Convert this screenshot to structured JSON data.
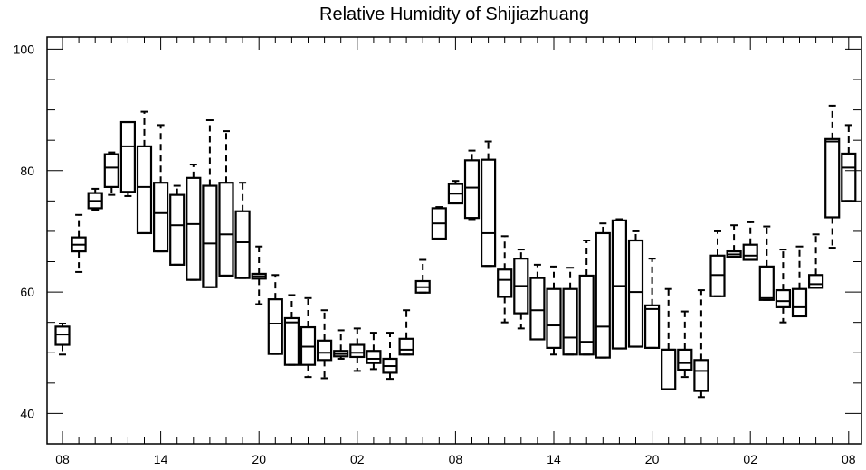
{
  "chart_data": {
    "type": "boxplot",
    "title": "Relative Humidity of Shijiazhuang",
    "xlabel": "",
    "ylabel": "",
    "ylim": [
      35,
      102
    ],
    "y_ticks": [
      40,
      60,
      80,
      100
    ],
    "x_tick_labels": [
      "08",
      "14",
      "20",
      "02",
      "08",
      "14",
      "20",
      "02",
      "08"
    ],
    "x_label_steps": [
      0,
      6,
      12,
      18,
      24,
      30,
      36,
      42,
      48
    ],
    "grid": false,
    "legend": "none",
    "colors": {
      "box": "#000000",
      "background": "#ffffff"
    },
    "boxes": [
      {
        "step": 0,
        "q1": 51.3,
        "median": 53.0,
        "q3": 54.3,
        "wlo": 49.7,
        "whi": 54.8
      },
      {
        "step": 1,
        "q1": 66.7,
        "median": 67.8,
        "q3": 69.0,
        "wlo": 63.3,
        "whi": 72.7
      },
      {
        "step": 2,
        "q1": 73.8,
        "median": 75.0,
        "q3": 76.3,
        "wlo": 73.5,
        "whi": 77.0
      },
      {
        "step": 3,
        "q1": 77.3,
        "median": 80.5,
        "q3": 82.7,
        "wlo": 76.0,
        "whi": 83.0
      },
      {
        "step": 4,
        "q1": 76.5,
        "median": 84.0,
        "q3": 88.0,
        "wlo": 75.8,
        "whi": 88.0
      },
      {
        "step": 5,
        "q1": 69.7,
        "median": 77.3,
        "q3": 84.0,
        "wlo": 69.7,
        "whi": 89.7
      },
      {
        "step": 6,
        "q1": 66.7,
        "median": 73.0,
        "q3": 78.0,
        "wlo": 66.7,
        "whi": 87.5
      },
      {
        "step": 7,
        "q1": 64.5,
        "median": 71.0,
        "q3": 76.0,
        "wlo": 64.5,
        "whi": 77.5
      },
      {
        "step": 8,
        "q1": 62.0,
        "median": 71.2,
        "q3": 78.8,
        "wlo": 62.0,
        "whi": 81.0
      },
      {
        "step": 9,
        "q1": 60.8,
        "median": 68.0,
        "q3": 77.5,
        "wlo": 60.8,
        "whi": 88.3
      },
      {
        "step": 10,
        "q1": 62.7,
        "median": 69.5,
        "q3": 78.0,
        "wlo": 62.7,
        "whi": 86.5
      },
      {
        "step": 11,
        "q1": 62.3,
        "median": 68.2,
        "q3": 73.3,
        "wlo": 62.3,
        "whi": 78.0
      },
      {
        "step": 12,
        "q1": 62.2,
        "median": 62.6,
        "q3": 63.0,
        "wlo": 58.0,
        "whi": 67.5
      },
      {
        "step": 13,
        "q1": 49.8,
        "median": 54.8,
        "q3": 58.8,
        "wlo": 49.8,
        "whi": 62.8
      },
      {
        "step": 14,
        "q1": 48.0,
        "median": 55.0,
        "q3": 55.7,
        "wlo": 48.0,
        "whi": 59.5
      },
      {
        "step": 15,
        "q1": 48.0,
        "median": 51.0,
        "q3": 54.2,
        "wlo": 46.0,
        "whi": 59.0
      },
      {
        "step": 16,
        "q1": 48.8,
        "median": 50.0,
        "q3": 52.0,
        "wlo": 45.8,
        "whi": 57.0
      },
      {
        "step": 17,
        "q1": 49.4,
        "median": 49.8,
        "q3": 50.3,
        "wlo": 49.0,
        "whi": 53.7
      },
      {
        "step": 18,
        "q1": 49.3,
        "median": 50.0,
        "q3": 51.3,
        "wlo": 47.0,
        "whi": 54.0
      },
      {
        "step": 19,
        "q1": 48.3,
        "median": 49.0,
        "q3": 50.3,
        "wlo": 47.3,
        "whi": 53.3
      },
      {
        "step": 20,
        "q1": 46.7,
        "median": 47.8,
        "q3": 49.0,
        "wlo": 45.7,
        "whi": 53.3
      },
      {
        "step": 21,
        "q1": 49.7,
        "median": 50.5,
        "q3": 52.3,
        "wlo": 49.7,
        "whi": 57.0
      },
      {
        "step": 22,
        "q1": 59.9,
        "median": 60.8,
        "q3": 61.8,
        "wlo": 59.9,
        "whi": 65.3
      },
      {
        "step": 23,
        "q1": 68.8,
        "median": 71.3,
        "q3": 73.8,
        "wlo": 68.8,
        "whi": 74.0
      },
      {
        "step": 24,
        "q1": 74.6,
        "median": 76.2,
        "q3": 77.8,
        "wlo": 74.6,
        "whi": 78.3
      },
      {
        "step": 25,
        "q1": 72.2,
        "median": 77.2,
        "q3": 81.7,
        "wlo": 72.0,
        "whi": 83.3
      },
      {
        "step": 26,
        "q1": 64.3,
        "median": 69.7,
        "q3": 81.8,
        "wlo": 64.3,
        "whi": 84.8
      },
      {
        "step": 27,
        "q1": 59.2,
        "median": 62.0,
        "q3": 63.7,
        "wlo": 55.0,
        "whi": 69.2
      },
      {
        "step": 28,
        "q1": 56.5,
        "median": 61.0,
        "q3": 65.5,
        "wlo": 54.0,
        "whi": 67.0
      },
      {
        "step": 29,
        "q1": 52.2,
        "median": 57.0,
        "q3": 62.3,
        "wlo": 52.2,
        "whi": 64.5
      },
      {
        "step": 30,
        "q1": 50.8,
        "median": 54.5,
        "q3": 60.5,
        "wlo": 49.7,
        "whi": 64.2
      },
      {
        "step": 31,
        "q1": 49.7,
        "median": 52.5,
        "q3": 60.5,
        "wlo": 49.7,
        "whi": 64.0
      },
      {
        "step": 32,
        "q1": 49.7,
        "median": 51.8,
        "q3": 62.7,
        "wlo": 49.7,
        "whi": 68.5
      },
      {
        "step": 33,
        "q1": 49.2,
        "median": 54.3,
        "q3": 69.7,
        "wlo": 49.2,
        "whi": 71.3
      },
      {
        "step": 34,
        "q1": 50.7,
        "median": 61.0,
        "q3": 71.8,
        "wlo": 50.7,
        "whi": 72.0
      },
      {
        "step": 35,
        "q1": 51.0,
        "median": 60.0,
        "q3": 68.5,
        "wlo": 51.0,
        "whi": 70.0
      },
      {
        "step": 36,
        "q1": 50.8,
        "median": 57.2,
        "q3": 57.8,
        "wlo": 50.8,
        "whi": 65.5
      },
      {
        "step": 37,
        "q1": 44.0,
        "median": 50.5,
        "q3": 50.5,
        "wlo": 44.0,
        "whi": 60.5
      },
      {
        "step": 38,
        "q1": 47.2,
        "median": 48.3,
        "q3": 50.5,
        "wlo": 46.0,
        "whi": 56.8
      },
      {
        "step": 39,
        "q1": 43.7,
        "median": 47.0,
        "q3": 48.8,
        "wlo": 42.7,
        "whi": 60.3
      },
      {
        "step": 40,
        "q1": 59.3,
        "median": 62.8,
        "q3": 66.0,
        "wlo": 59.3,
        "whi": 70.0
      },
      {
        "step": 41,
        "q1": 65.8,
        "median": 66.2,
        "q3": 66.7,
        "wlo": 65.8,
        "whi": 71.0
      },
      {
        "step": 42,
        "q1": 65.3,
        "median": 66.0,
        "q3": 67.8,
        "wlo": 65.3,
        "whi": 71.5
      },
      {
        "step": 43,
        "q1": 58.7,
        "median": 59.0,
        "q3": 64.2,
        "wlo": 58.7,
        "whi": 70.8
      },
      {
        "step": 44,
        "q1": 57.5,
        "median": 58.5,
        "q3": 60.3,
        "wlo": 55.0,
        "whi": 67.0
      },
      {
        "step": 45,
        "q1": 56.0,
        "median": 57.5,
        "q3": 60.5,
        "wlo": 56.0,
        "whi": 67.5
      },
      {
        "step": 46,
        "q1": 60.7,
        "median": 61.3,
        "q3": 62.8,
        "wlo": 60.7,
        "whi": 69.5
      },
      {
        "step": 47,
        "q1": 72.3,
        "median": 84.8,
        "q3": 85.2,
        "wlo": 67.3,
        "whi": 90.7
      },
      {
        "step": 48,
        "q1": 75.0,
        "median": 80.5,
        "q3": 82.8,
        "wlo": 75.0,
        "whi": 87.5
      }
    ]
  }
}
